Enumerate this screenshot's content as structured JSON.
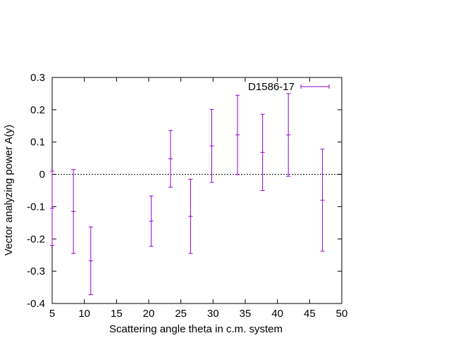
{
  "chart_data": {
    "type": "scatter",
    "title": "",
    "xlabel": "Scattering angle theta in c.m. system",
    "ylabel": "Vector analyzing power A(y)",
    "xlim": [
      5,
      50
    ],
    "ylim": [
      -0.4,
      0.3
    ],
    "xticks": [
      "5",
      "10",
      "15",
      "20",
      "25",
      "30",
      "35",
      "40",
      "45",
      "50"
    ],
    "yticks": [
      "0.3",
      "0.2",
      "0.1",
      "0",
      "-0.1",
      "-0.2",
      "-0.3",
      "-0.4"
    ],
    "zero_line": true,
    "grid": false,
    "legend_position": "top-right",
    "series": [
      {
        "name": "D1586-17",
        "color": "#9400d3",
        "points": [
          {
            "x": 5.0,
            "y": -0.105,
            "err": 0.115
          },
          {
            "x": 8.3,
            "y": -0.115,
            "err": 0.13
          },
          {
            "x": 11.0,
            "y": -0.268,
            "err": 0.105
          },
          {
            "x": 20.4,
            "y": -0.145,
            "err": 0.078
          },
          {
            "x": 23.4,
            "y": 0.048,
            "err": 0.088
          },
          {
            "x": 26.5,
            "y": -0.13,
            "err": 0.115
          },
          {
            "x": 29.8,
            "y": 0.088,
            "err": 0.113
          },
          {
            "x": 33.8,
            "y": 0.122,
            "err": 0.123
          },
          {
            "x": 37.7,
            "y": 0.068,
            "err": 0.118
          },
          {
            "x": 41.7,
            "y": 0.122,
            "err": 0.128
          },
          {
            "x": 47.0,
            "y": -0.08,
            "err": 0.158
          }
        ]
      }
    ]
  }
}
